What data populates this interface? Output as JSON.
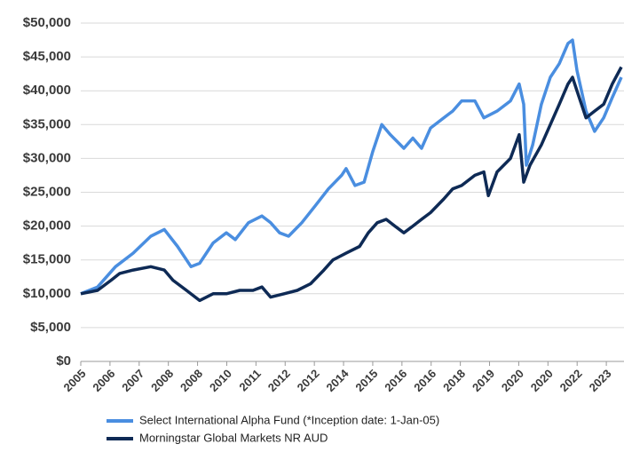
{
  "chart_data": {
    "type": "line",
    "xlim": [
      2005,
      2023.14
    ],
    "xticks": [
      {
        "value": 2005,
        "label": "2005"
      },
      {
        "value": 2005.975,
        "label": "2006"
      },
      {
        "value": 2006.95,
        "label": "2007"
      },
      {
        "value": 2007.925,
        "label": "2008"
      },
      {
        "value": 2008.9,
        "label": "2008"
      },
      {
        "value": 2009.875,
        "label": "2010"
      },
      {
        "value": 2010.85,
        "label": "2011"
      },
      {
        "value": 2011.825,
        "label": "2012"
      },
      {
        "value": 2012.8,
        "label": "2012"
      },
      {
        "value": 2013.775,
        "label": "2014"
      },
      {
        "value": 2014.75,
        "label": "2015"
      },
      {
        "value": 2015.725,
        "label": "2016"
      },
      {
        "value": 2016.7,
        "label": "2016"
      },
      {
        "value": 2017.675,
        "label": "2018"
      },
      {
        "value": 2018.65,
        "label": "2019"
      },
      {
        "value": 2019.625,
        "label": "2020"
      },
      {
        "value": 2020.6,
        "label": "2020"
      },
      {
        "value": 2021.575,
        "label": "2022"
      },
      {
        "value": 2022.55,
        "label": "2023"
      }
    ],
    "ylim": [
      0,
      50000
    ],
    "yticks": [
      {
        "value": 0,
        "label": "$0"
      },
      {
        "value": 5000,
        "label": "$5,000"
      },
      {
        "value": 10000,
        "label": "$10,000"
      },
      {
        "value": 15000,
        "label": "$15,000"
      },
      {
        "value": 20000,
        "label": "$20,000"
      },
      {
        "value": 25000,
        "label": "$25,000"
      },
      {
        "value": 30000,
        "label": "$30,000"
      },
      {
        "value": 35000,
        "label": "$35,000"
      },
      {
        "value": 40000,
        "label": "$40,000"
      },
      {
        "value": 45000,
        "label": "$45,000"
      },
      {
        "value": 50000,
        "label": "$50,000"
      }
    ],
    "grid": true,
    "legend": "bottom",
    "series": [
      {
        "name": "Select International Alpha Fund (*Inception date: 1-Jan-05)",
        "color": "#4a8ee0",
        "x": [
          2005.0,
          2005.56,
          2006.16,
          2006.75,
          2007.34,
          2007.79,
          2008.23,
          2008.68,
          2008.97,
          2009.42,
          2009.86,
          2010.16,
          2010.6,
          2011.05,
          2011.34,
          2011.64,
          2011.94,
          2012.38,
          2012.83,
          2013.27,
          2013.71,
          2013.86,
          2014.16,
          2014.46,
          2014.75,
          2015.05,
          2015.34,
          2015.79,
          2016.09,
          2016.38,
          2016.68,
          2017.12,
          2017.42,
          2017.72,
          2018.16,
          2018.46,
          2018.9,
          2019.35,
          2019.64,
          2019.79,
          2019.88,
          2020.09,
          2020.38,
          2020.68,
          2020.98,
          2021.27,
          2021.42,
          2021.57,
          2021.87,
          2022.16,
          2022.46,
          2022.75,
          2023.05
        ],
        "values": [
          10000,
          11000,
          14000,
          16000,
          18500,
          19500,
          17000,
          14000,
          14500,
          17500,
          19000,
          18000,
          20500,
          21500,
          20500,
          19000,
          18500,
          20500,
          23000,
          25500,
          27500,
          28500,
          26000,
          26500,
          31000,
          35000,
          33500,
          31500,
          33000,
          31500,
          34500,
          36000,
          37000,
          38500,
          38500,
          36000,
          37000,
          38500,
          41000,
          38000,
          29000,
          32000,
          38000,
          42000,
          44000,
          47000,
          47500,
          43000,
          37000,
          34000,
          36000,
          39000,
          42000
        ]
      },
      {
        "name": "Morningstar Global Markets NR AUD",
        "color": "#0e2a55",
        "x": [
          2005.0,
          2005.56,
          2006.01,
          2006.3,
          2006.75,
          2007.34,
          2007.79,
          2008.08,
          2008.53,
          2008.97,
          2009.42,
          2009.86,
          2010.31,
          2010.75,
          2011.05,
          2011.34,
          2011.79,
          2012.23,
          2012.68,
          2013.12,
          2013.42,
          2013.86,
          2014.31,
          2014.6,
          2014.9,
          2015.2,
          2015.49,
          2015.79,
          2016.09,
          2016.38,
          2016.68,
          2017.12,
          2017.42,
          2017.72,
          2018.16,
          2018.46,
          2018.61,
          2018.9,
          2019.35,
          2019.64,
          2019.79,
          2020.0,
          2020.38,
          2020.68,
          2020.98,
          2021.27,
          2021.42,
          2021.57,
          2021.87,
          2022.16,
          2022.46,
          2022.75,
          2023.05
        ],
        "values": [
          10000,
          10500,
          12000,
          13000,
          13500,
          14000,
          13500,
          12000,
          10500,
          9000,
          10000,
          10000,
          10500,
          10500,
          11000,
          9500,
          10000,
          10500,
          11500,
          13500,
          15000,
          16000,
          17000,
          19000,
          20500,
          21000,
          20000,
          19000,
          20000,
          21000,
          22000,
          24000,
          25500,
          26000,
          27500,
          28000,
          24500,
          28000,
          30000,
          33500,
          26500,
          29000,
          32000,
          35000,
          38000,
          41000,
          42000,
          40000,
          36000,
          37000,
          38000,
          41000,
          43500
        ]
      }
    ]
  }
}
